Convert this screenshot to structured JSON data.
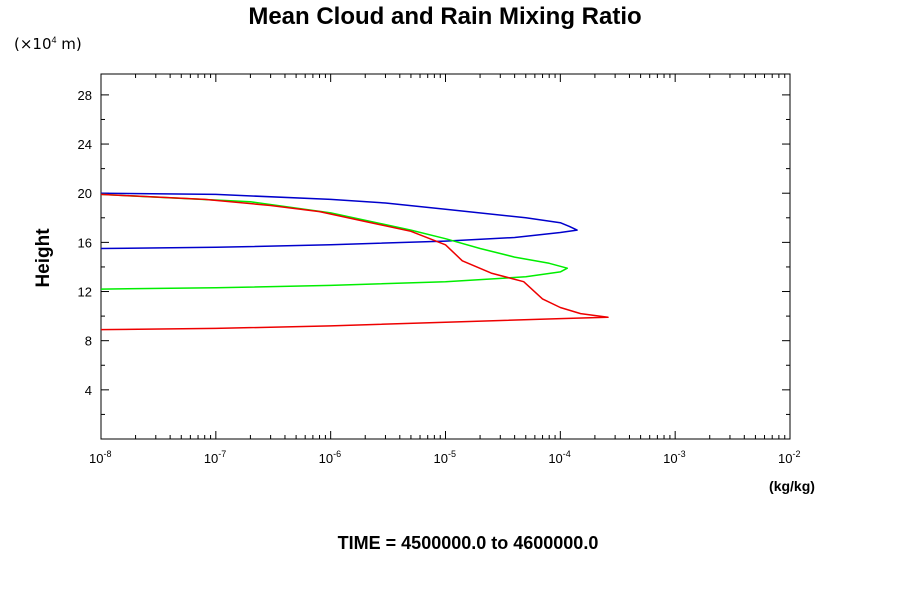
{
  "chart_data": {
    "type": "line",
    "title": "Mean Cloud and Rain Mixing Ratio",
    "y_unit": "(×10",
    "y_unit_exp": "4",
    "y_unit_tail": " m)",
    "ylabel": "Height",
    "xlabel": "(kg/kg)",
    "footer": "TIME = 4500000.0 to 4600000.0",
    "xscale": "log",
    "xlim": [
      1e-08,
      0.01
    ],
    "ylim": [
      0,
      29.7
    ],
    "grid": false,
    "legend": "none",
    "x_ticks": [
      {
        "base": "10",
        "exp": "-8"
      },
      {
        "base": "10",
        "exp": "-7"
      },
      {
        "base": "10",
        "exp": "-6"
      },
      {
        "base": "10",
        "exp": "-5"
      },
      {
        "base": "10",
        "exp": "-4"
      },
      {
        "base": "10",
        "exp": "-3"
      },
      {
        "base": "10",
        "exp": "-2"
      }
    ],
    "y_ticks": [
      "4",
      "8",
      "12",
      "16",
      "20",
      "24",
      "28"
    ],
    "series": [
      {
        "color": "#0000cc",
        "points": [
          [
            1e-08,
            15.5
          ],
          [
            1e-07,
            15.6
          ],
          [
            1e-06,
            15.8
          ],
          [
            1e-05,
            16.1
          ],
          [
            4e-05,
            16.4
          ],
          [
            0.0001,
            16.8
          ],
          [
            0.00014,
            17.0
          ],
          [
            0.00012,
            17.3
          ],
          [
            0.0001,
            17.6
          ],
          [
            5e-05,
            18.0
          ],
          [
            1e-05,
            18.7
          ],
          [
            3e-06,
            19.2
          ],
          [
            1e-06,
            19.5
          ],
          [
            1e-07,
            19.9
          ],
          [
            1e-08,
            20.0
          ]
        ]
      },
      {
        "color": "#00ee00",
        "points": [
          [
            1e-08,
            12.2
          ],
          [
            1e-07,
            12.3
          ],
          [
            1e-06,
            12.5
          ],
          [
            1e-05,
            12.8
          ],
          [
            5e-05,
            13.2
          ],
          [
            0.0001,
            13.6
          ],
          [
            0.000115,
            13.9
          ],
          [
            8e-05,
            14.3
          ],
          [
            4e-05,
            14.8
          ],
          [
            2e-05,
            15.5
          ],
          [
            1e-05,
            16.3
          ],
          [
            5e-06,
            17.0
          ],
          [
            1e-06,
            18.4
          ],
          [
            2e-07,
            19.3
          ],
          [
            1e-08,
            19.9
          ]
        ]
      },
      {
        "color": "#ee0000",
        "points": [
          [
            1e-08,
            8.9
          ],
          [
            1e-07,
            9.0
          ],
          [
            1e-06,
            9.2
          ],
          [
            1e-05,
            9.5
          ],
          [
            0.0001,
            9.8
          ],
          [
            0.00026,
            9.9
          ],
          [
            0.00015,
            10.2
          ],
          [
            0.0001,
            10.7
          ],
          [
            7e-05,
            11.4
          ],
          [
            4.8e-05,
            12.8
          ],
          [
            2.5e-05,
            13.5
          ],
          [
            1.4e-05,
            14.5
          ],
          [
            1e-05,
            15.8
          ],
          [
            5e-06,
            16.9
          ],
          [
            2e-06,
            17.7
          ],
          [
            8e-07,
            18.5
          ],
          [
            3e-07,
            19.0
          ],
          [
            8e-08,
            19.5
          ],
          [
            1e-08,
            19.9
          ]
        ]
      }
    ]
  }
}
